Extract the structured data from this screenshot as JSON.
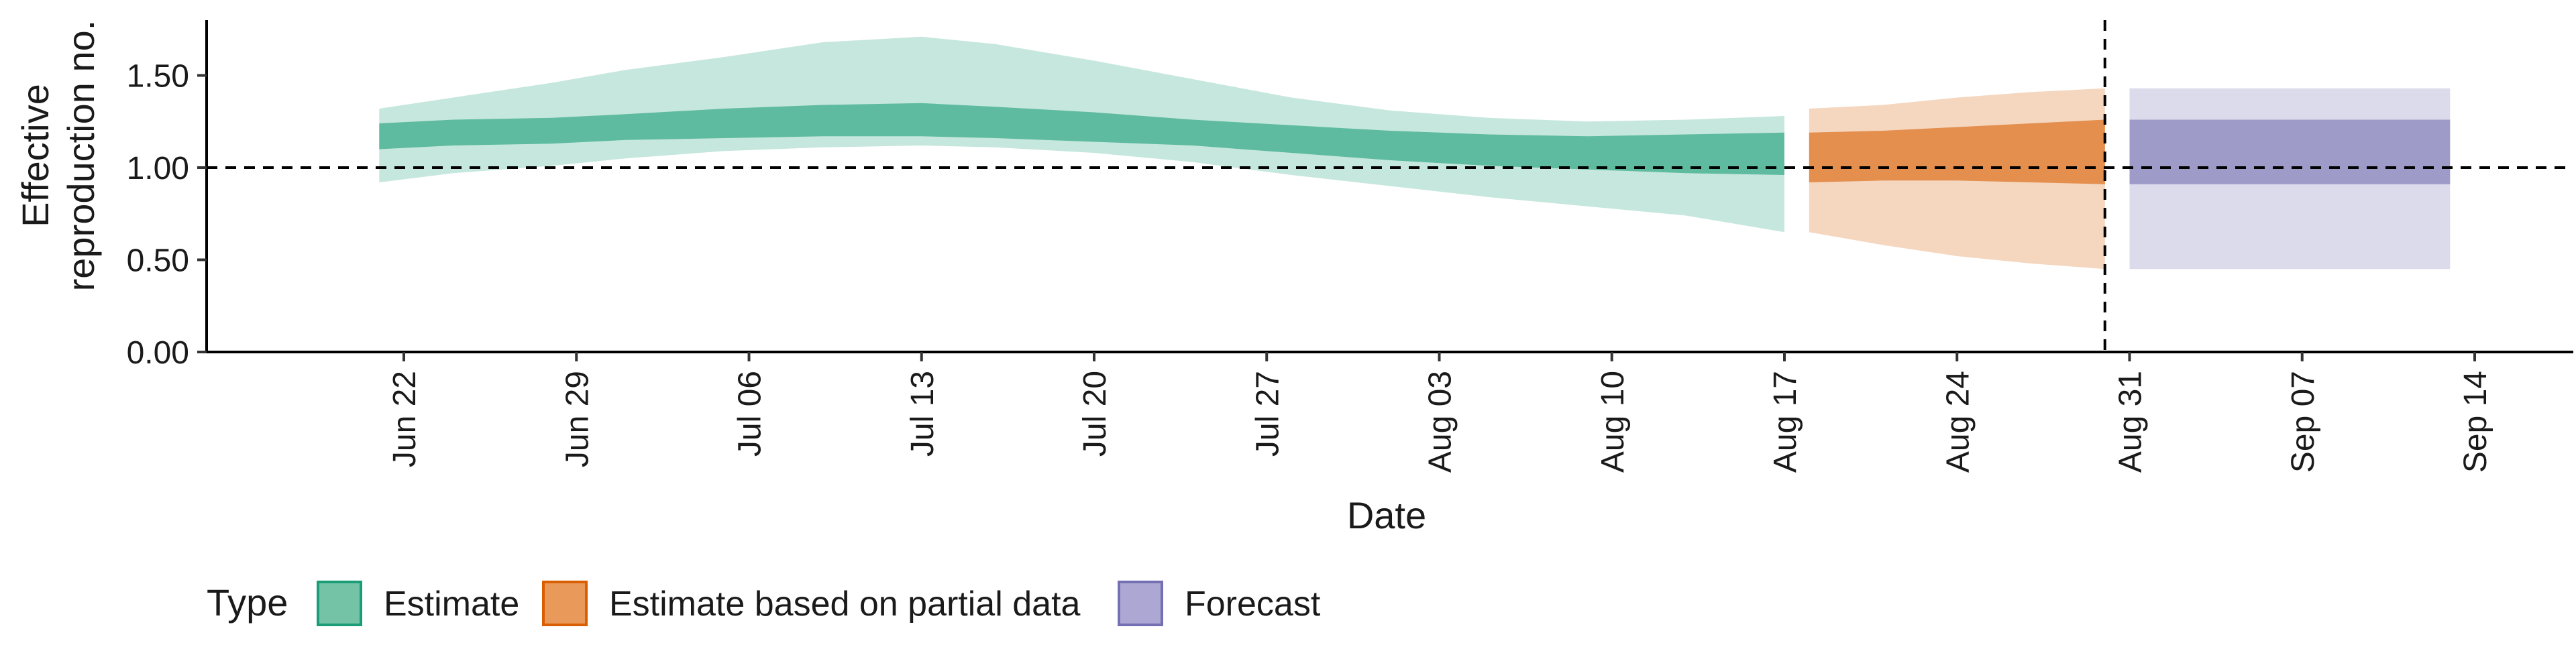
{
  "chart_data": {
    "type": "area",
    "title": "",
    "xlabel": "Date",
    "ylabel_lines": [
      "Effective",
      "reproduction no."
    ],
    "ylim": [
      0,
      1.8
    ],
    "yticks": [
      0.0,
      0.5,
      1.0,
      1.5
    ],
    "ytick_labels": [
      "0.00",
      "0.50",
      "1.00",
      "1.50"
    ],
    "xlim": [
      "2020-06-14",
      "2020-09-18"
    ],
    "xticks": [
      "2020-06-22",
      "2020-06-29",
      "2020-07-06",
      "2020-07-13",
      "2020-07-20",
      "2020-07-27",
      "2020-08-03",
      "2020-08-10",
      "2020-08-17",
      "2020-08-24",
      "2020-08-31",
      "2020-09-07",
      "2020-09-14"
    ],
    "xtick_labels": [
      "Jun 22",
      "Jun 29",
      "Jul 06",
      "Jul 13",
      "Jul 20",
      "Jul 27",
      "Aug 03",
      "Aug 10",
      "Aug 17",
      "Aug 24",
      "Aug 31",
      "Sep 07",
      "Sep 14"
    ],
    "reference_line_y": 1.0,
    "reference_line_x": "2020-08-30",
    "grid": false,
    "legend": {
      "position": "bottom-left",
      "title": "Type",
      "entries": [
        {
          "label": "Estimate",
          "fill": "#74c3a7",
          "stroke": "#1b9e77"
        },
        {
          "label": "Estimate based on partial data",
          "fill": "#e9995a",
          "stroke": "#d95f02"
        },
        {
          "label": "Forecast",
          "fill": "#aca8d3",
          "stroke": "#7570b3"
        }
      ]
    },
    "series": [
      {
        "name": "Estimate",
        "color": "#1b9e77",
        "points": [
          {
            "date": "2020-06-21",
            "lower90": 0.92,
            "upper90": 1.32,
            "lower50": 1.1,
            "upper50": 1.24
          },
          {
            "date": "2020-06-24",
            "lower90": 0.97,
            "upper90": 1.38,
            "lower50": 1.12,
            "upper50": 1.26
          },
          {
            "date": "2020-06-28",
            "lower90": 1.01,
            "upper90": 1.46,
            "lower50": 1.13,
            "upper50": 1.27
          },
          {
            "date": "2020-07-01",
            "lower90": 1.05,
            "upper90": 1.53,
            "lower50": 1.15,
            "upper50": 1.29
          },
          {
            "date": "2020-07-05",
            "lower90": 1.09,
            "upper90": 1.6,
            "lower50": 1.16,
            "upper50": 1.32
          },
          {
            "date": "2020-07-09",
            "lower90": 1.11,
            "upper90": 1.68,
            "lower50": 1.17,
            "upper50": 1.34
          },
          {
            "date": "2020-07-13",
            "lower90": 1.12,
            "upper90": 1.71,
            "lower50": 1.17,
            "upper50": 1.35
          },
          {
            "date": "2020-07-16",
            "lower90": 1.11,
            "upper90": 1.67,
            "lower50": 1.16,
            "upper50": 1.33
          },
          {
            "date": "2020-07-20",
            "lower90": 1.08,
            "upper90": 1.58,
            "lower50": 1.14,
            "upper50": 1.3
          },
          {
            "date": "2020-07-24",
            "lower90": 1.03,
            "upper90": 1.48,
            "lower50": 1.12,
            "upper50": 1.26
          },
          {
            "date": "2020-07-28",
            "lower90": 0.96,
            "upper90": 1.38,
            "lower50": 1.08,
            "upper50": 1.23
          },
          {
            "date": "2020-08-01",
            "lower90": 0.9,
            "upper90": 1.31,
            "lower50": 1.04,
            "upper50": 1.2
          },
          {
            "date": "2020-08-05",
            "lower90": 0.84,
            "upper90": 1.27,
            "lower50": 1.01,
            "upper50": 1.18
          },
          {
            "date": "2020-08-09",
            "lower90": 0.79,
            "upper90": 1.25,
            "lower50": 0.99,
            "upper50": 1.17
          },
          {
            "date": "2020-08-13",
            "lower90": 0.74,
            "upper90": 1.26,
            "lower50": 0.97,
            "upper50": 1.18
          },
          {
            "date": "2020-08-17",
            "lower90": 0.65,
            "upper90": 1.28,
            "lower50": 0.96,
            "upper50": 1.19
          }
        ]
      },
      {
        "name": "Estimate based on partial data",
        "color": "#d95f02",
        "points": [
          {
            "date": "2020-08-18",
            "lower90": 0.65,
            "upper90": 1.32,
            "lower50": 0.92,
            "upper50": 1.19
          },
          {
            "date": "2020-08-21",
            "lower90": 0.58,
            "upper90": 1.34,
            "lower50": 0.93,
            "upper50": 1.2
          },
          {
            "date": "2020-08-24",
            "lower90": 0.52,
            "upper90": 1.38,
            "lower50": 0.93,
            "upper50": 1.22
          },
          {
            "date": "2020-08-27",
            "lower90": 0.48,
            "upper90": 1.41,
            "lower50": 0.92,
            "upper50": 1.24
          },
          {
            "date": "2020-08-30",
            "lower90": 0.45,
            "upper90": 1.43,
            "lower50": 0.91,
            "upper50": 1.26
          }
        ]
      },
      {
        "name": "Forecast",
        "color": "#7570b3",
        "points": [
          {
            "date": "2020-08-31",
            "lower90": 0.45,
            "upper90": 1.43,
            "lower50": 0.91,
            "upper50": 1.26
          },
          {
            "date": "2020-09-13",
            "lower90": 0.45,
            "upper90": 1.43,
            "lower50": 0.91,
            "upper50": 1.26
          }
        ]
      }
    ]
  }
}
